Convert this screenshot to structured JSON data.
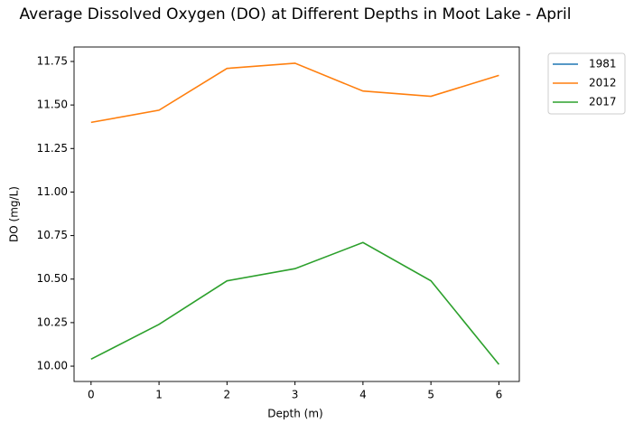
{
  "chart_data": {
    "type": "line",
    "title": "Average Dissolved Oxygen (DO) at Different Depths in Moot Lake - April",
    "xlabel": "Depth (m)",
    "ylabel": "DO (mg/L)",
    "x": [
      0,
      1,
      2,
      3,
      4,
      5,
      6
    ],
    "series": [
      {
        "name": "1981",
        "color": "#1f77b4",
        "values": [
          null,
          null,
          null,
          null,
          null,
          null,
          null
        ]
      },
      {
        "name": "2012",
        "color": "#ff7f0e",
        "values": [
          11.4,
          11.47,
          11.71,
          11.74,
          11.58,
          11.55,
          11.67
        ]
      },
      {
        "name": "2017",
        "color": "#2ca02c",
        "values": [
          10.04,
          10.24,
          10.49,
          10.56,
          10.71,
          10.49,
          10.01
        ]
      }
    ],
    "xlim": [
      -0.25,
      6.3
    ],
    "ylim": [
      9.912,
      11.833
    ],
    "xticks": [
      0,
      1,
      2,
      3,
      4,
      5,
      6
    ],
    "yticks": [
      {
        "value": 10.0,
        "label": "10.00"
      },
      {
        "value": 10.25,
        "label": "10.25"
      },
      {
        "value": 10.5,
        "label": "10.50"
      },
      {
        "value": 10.75,
        "label": "10.75"
      },
      {
        "value": 11.0,
        "label": "11.00"
      },
      {
        "value": 11.25,
        "label": "11.25"
      },
      {
        "value": 11.5,
        "label": "11.50"
      },
      {
        "value": 11.75,
        "label": "11.75"
      }
    ],
    "legend": "outside-right",
    "grid": false
  }
}
